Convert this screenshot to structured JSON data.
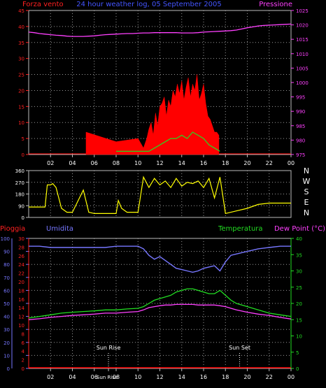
{
  "chart_data": [
    {
      "type": "line",
      "title": "24 hour weather log, 05 September 2005",
      "left_label": "Forza vento",
      "right_label": "Pressione",
      "x_tick_labels": [
        "02",
        "04",
        "06",
        "08",
        "10",
        "12",
        "14",
        "16",
        "18",
        "20",
        "22",
        "00"
      ],
      "wind_ticks": [
        0,
        5,
        10,
        15,
        20,
        25,
        30,
        35,
        40,
        45
      ],
      "pressure_ticks": [
        975,
        980,
        985,
        990,
        995,
        1000,
        1005,
        1010,
        1015,
        1020,
        1025
      ],
      "ylim_wind": [
        0,
        45
      ],
      "ylim_pressure": [
        975,
        1025
      ],
      "grid": true,
      "series": [
        {
          "name": "Pressione",
          "x": [
            0,
            0.5,
            1,
            1.5,
            2,
            2.5,
            3,
            3.5,
            4,
            4.5,
            5,
            5.5,
            6,
            6.5,
            7,
            7.5,
            8,
            8.5,
            9,
            9.5,
            10,
            10.5,
            11,
            11.5,
            12,
            12.5,
            13,
            13.5,
            14,
            14.5,
            15,
            15.5,
            16,
            16.5,
            17,
            17.5,
            18,
            18.5,
            19,
            19.5,
            20,
            20.5,
            21,
            21.5,
            22,
            22.5,
            23,
            23.5,
            24
          ],
          "values": [
            1017.5,
            1017.3,
            1017.0,
            1016.8,
            1016.6,
            1016.4,
            1016.3,
            1016.1,
            1016.0,
            1016.0,
            1016.0,
            1016.1,
            1016.2,
            1016.4,
            1016.6,
            1016.7,
            1016.8,
            1016.9,
            1017.0,
            1017.0,
            1017.1,
            1017.2,
            1017.2,
            1017.3,
            1017.3,
            1017.3,
            1017.3,
            1017.3,
            1017.2,
            1017.2,
            1017.2,
            1017.3,
            1017.5,
            1017.6,
            1017.7,
            1017.8,
            1017.9,
            1018.0,
            1018.2,
            1018.6,
            1019.0,
            1019.3,
            1019.6,
            1019.8,
            1019.9,
            1020.0,
            1020.1,
            1020.2,
            1020.3
          ]
        },
        {
          "name": "Wind gust",
          "x": [
            5.25,
            8.0,
            10.0,
            10.5,
            10.8,
            11.0,
            11.2,
            11.4,
            11.6,
            11.8,
            12.0,
            12.2,
            12.4,
            12.6,
            12.8,
            13.0,
            13.2,
            13.4,
            13.6,
            13.8,
            14.0,
            14.2,
            14.4,
            14.6,
            14.8,
            15.0,
            15.2,
            15.4,
            15.6,
            15.8,
            16.0,
            16.2,
            16.4,
            16.6,
            16.8,
            17.0,
            17.2,
            17.4
          ],
          "values": [
            7,
            4,
            5,
            2,
            5,
            8,
            10,
            6,
            13,
            9,
            15,
            16,
            18,
            12,
            17,
            15,
            20,
            18,
            22,
            19,
            23,
            17,
            21,
            24,
            18,
            22,
            20,
            25,
            17,
            19,
            22,
            16,
            12,
            11,
            9,
            7,
            7,
            6
          ]
        },
        {
          "name": "Wind average",
          "x": [
            8.0,
            10.5,
            11.0,
            11.5,
            12.0,
            12.5,
            13.0,
            13.5,
            14.0,
            14.5,
            15.0,
            15.5,
            16.0,
            16.5,
            17.0,
            17.5
          ],
          "values": [
            1,
            1,
            1,
            2,
            3,
            4,
            5,
            5,
            6,
            5,
            7,
            6,
            5,
            3,
            2,
            1
          ]
        }
      ]
    },
    {
      "type": "line",
      "y_ticks": [
        0,
        90,
        180,
        270,
        360
      ],
      "compass": [
        "N",
        "W",
        "S",
        "E",
        "N"
      ],
      "ylim": [
        0,
        360
      ],
      "series": [
        {
          "name": "Direzione vento",
          "x": [
            0,
            1,
            1.5,
            1.7,
            2,
            2.2,
            2.5,
            3,
            3.5,
            4,
            5,
            5.5,
            6,
            7,
            7.5,
            8,
            8.2,
            8.5,
            9,
            10,
            10.5,
            11,
            11.5,
            12,
            12.5,
            13,
            13.5,
            14,
            14.5,
            15,
            15.5,
            16,
            16.5,
            17,
            17.5,
            18,
            19,
            20,
            21,
            22,
            23,
            24
          ],
          "values": [
            80,
            80,
            80,
            250,
            250,
            260,
            230,
            70,
            40,
            40,
            210,
            40,
            30,
            30,
            30,
            30,
            130,
            70,
            40,
            40,
            310,
            230,
            300,
            250,
            280,
            230,
            300,
            240,
            270,
            260,
            280,
            230,
            300,
            150,
            310,
            30,
            50,
            70,
            100,
            110,
            110,
            110
          ]
        }
      ]
    },
    {
      "type": "line",
      "left_labels": [
        "Pioggia",
        "Umidita"
      ],
      "right_labels": [
        "Temperatura",
        "Dew Point (°C)"
      ],
      "x_tick_labels": [
        "02",
        "04",
        "06",
        "Sun Rise",
        "08",
        "10",
        "12",
        "14",
        "16",
        "18",
        "20",
        "22",
        "00"
      ],
      "annotations": [
        "Sun Rise",
        "Sun Set"
      ],
      "rain_ticks": [
        0,
        2,
        4,
        6,
        8,
        10,
        12,
        14,
        16,
        18,
        20,
        22,
        24,
        26,
        28,
        30
      ],
      "humidity_ticks": [
        0,
        10,
        20,
        30,
        40,
        50,
        60,
        70,
        80,
        90,
        100
      ],
      "temperature_ticks": [
        0,
        5,
        10,
        15,
        20,
        25,
        30,
        35,
        40
      ],
      "ylim_humidity": [
        0,
        100
      ],
      "ylim_temperature": [
        0,
        40
      ],
      "series": [
        {
          "name": "Umidita",
          "x": [
            0,
            1,
            2,
            3,
            4,
            5,
            6,
            7,
            8,
            9,
            10,
            10.5,
            11,
            11.5,
            12,
            12.5,
            13,
            13.5,
            14,
            14.5,
            15,
            15.5,
            16,
            16.5,
            17,
            17.5,
            18,
            18.5,
            19,
            20,
            21,
            22,
            23,
            24
          ],
          "values": [
            94,
            94,
            93,
            93,
            93,
            93,
            93,
            93,
            94,
            94,
            94,
            92,
            87,
            84,
            86,
            83,
            80,
            77,
            76,
            75,
            74,
            75,
            77,
            78,
            79,
            75,
            82,
            87,
            88,
            90,
            92,
            93,
            94,
            94
          ]
        },
        {
          "name": "Temperatura",
          "x": [
            0,
            1,
            2,
            3,
            4,
            5,
            6,
            7,
            8,
            9,
            10,
            10.5,
            11,
            11.5,
            12,
            12.5,
            13,
            13.5,
            14,
            14.5,
            15,
            15.5,
            16,
            16.5,
            17,
            17.5,
            18,
            18.5,
            19,
            20,
            21,
            22,
            23,
            24
          ],
          "values": [
            15.5,
            16,
            16.5,
            17,
            17.3,
            17.5,
            17.7,
            18,
            18,
            18.3,
            18.5,
            19,
            20,
            21,
            21.5,
            22,
            22.5,
            23.5,
            24,
            24.5,
            24.5,
            24,
            23.5,
            23,
            23,
            24,
            22.5,
            21,
            20,
            19,
            18,
            17,
            16.5,
            16
          ]
        },
        {
          "name": "Dew Point",
          "x": [
            0,
            1,
            2,
            3,
            4,
            5,
            6,
            7,
            8,
            9,
            10,
            10.5,
            11,
            11.5,
            12,
            12.5,
            13,
            13.5,
            14,
            14.5,
            15,
            15.5,
            16,
            16.5,
            17,
            17.5,
            18,
            18.5,
            19,
            20,
            21,
            22,
            23,
            24
          ],
          "values": [
            15,
            15.3,
            15.7,
            16,
            16.3,
            16.5,
            16.7,
            17,
            17,
            17.3,
            17.5,
            18,
            18.7,
            19,
            19.3,
            19.5,
            19.5,
            19.7,
            19.7,
            19.7,
            19.7,
            19.5,
            19.5,
            19.5,
            19.5,
            19.3,
            19,
            18.5,
            18,
            17.3,
            16.7,
            16.3,
            15.7,
            15.2
          ]
        },
        {
          "name": "Pioggia",
          "x": [
            0,
            24
          ],
          "values": [
            0,
            0
          ]
        }
      ]
    }
  ]
}
